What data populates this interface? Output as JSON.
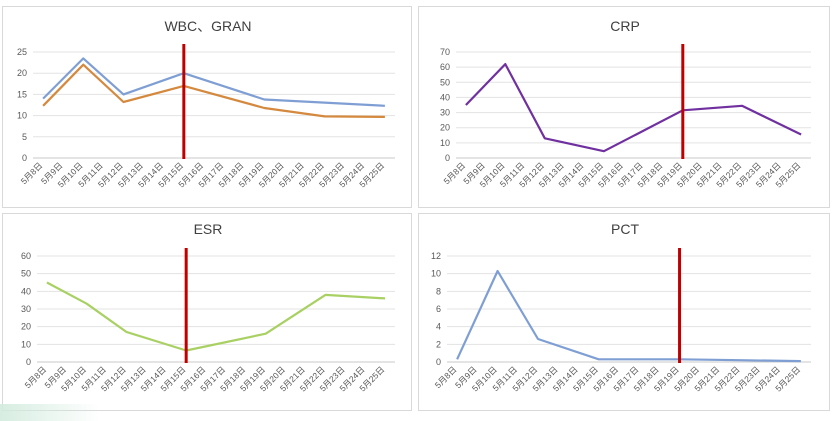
{
  "dates": [
    "5月8日",
    "5月9日",
    "5月10日",
    "5月11日",
    "5月12日",
    "5月13日",
    "5月14日",
    "5月15日",
    "5月16日",
    "5月17日",
    "5月18日",
    "5月19日",
    "5月20日",
    "5月21日",
    "5月22日",
    "5月23日",
    "5月24日",
    "5月25日"
  ],
  "chart_data": [
    {
      "id": "wbc",
      "type": "line",
      "title": "WBC、GRAN",
      "ylim": [
        0,
        25
      ],
      "yticks": [
        0,
        5,
        10,
        15,
        20,
        25
      ],
      "grid": true,
      "marker_line_at": "5月15日",
      "series": [
        {
          "color": "#7f9fd4",
          "points": [
            [
              "5月8日",
              14
            ],
            [
              "5月10日",
              23.5
            ],
            [
              "5月12日",
              15
            ],
            [
              "5月15日",
              20
            ],
            [
              "5月19日",
              13.8
            ],
            [
              "5月25日",
              12.3
            ]
          ]
        },
        {
          "color": "#d4893e",
          "points": [
            [
              "5月8日",
              12.3
            ],
            [
              "5月10日",
              22
            ],
            [
              "5月12日",
              13.2
            ],
            [
              "5月15日",
              17
            ],
            [
              "5月19日",
              11.8
            ],
            [
              "5月22日",
              9.8
            ],
            [
              "5月25日",
              9.7
            ]
          ]
        }
      ]
    },
    {
      "id": "crp",
      "type": "line",
      "title": "CRP",
      "ylim": [
        0,
        70
      ],
      "yticks": [
        0,
        10,
        20,
        30,
        40,
        50,
        60,
        70
      ],
      "grid": true,
      "marker_line_at": "5月19日",
      "series": [
        {
          "color": "#7030a0",
          "points": [
            [
              "5月8日",
              35
            ],
            [
              "5月10日",
              62
            ],
            [
              "5月12日",
              13
            ],
            [
              "5月15日",
              4.5
            ],
            [
              "5月19日",
              31.5
            ],
            [
              "5月22日",
              34.5
            ],
            [
              "5月25日",
              15.5
            ]
          ]
        }
      ]
    },
    {
      "id": "esr",
      "type": "line",
      "title": "ESR",
      "ylim": [
        0,
        60
      ],
      "yticks": [
        0,
        10,
        20,
        30,
        40,
        50,
        60
      ],
      "grid": true,
      "marker_line_at": "5月15日",
      "series": [
        {
          "color": "#a9d063",
          "points": [
            [
              "5月8日",
              45
            ],
            [
              "5月10日",
              33
            ],
            [
              "5月12日",
              17
            ],
            [
              "5月15日",
              6.5
            ],
            [
              "5月19日",
              16
            ],
            [
              "5月22日",
              38
            ],
            [
              "5月25日",
              36
            ]
          ]
        }
      ]
    },
    {
      "id": "pct",
      "type": "line",
      "title": "PCT",
      "ylim": [
        0,
        12
      ],
      "yticks": [
        0,
        2,
        4,
        6,
        8,
        10,
        12
      ],
      "grid": true,
      "marker_line_at": "5月19日",
      "series": [
        {
          "color": "#7f9fd4",
          "points": [
            [
              "5月8日",
              0.3
            ],
            [
              "5月10日",
              10.3
            ],
            [
              "5月12日",
              2.6
            ],
            [
              "5月15日",
              0.3
            ],
            [
              "5月19日",
              0.3
            ],
            [
              "5月22日",
              0.2
            ],
            [
              "5月25日",
              0.1
            ]
          ]
        }
      ]
    }
  ],
  "colors": {
    "marker_line": "#c00000",
    "grid": "#e3e3e3",
    "text": "#595959"
  }
}
